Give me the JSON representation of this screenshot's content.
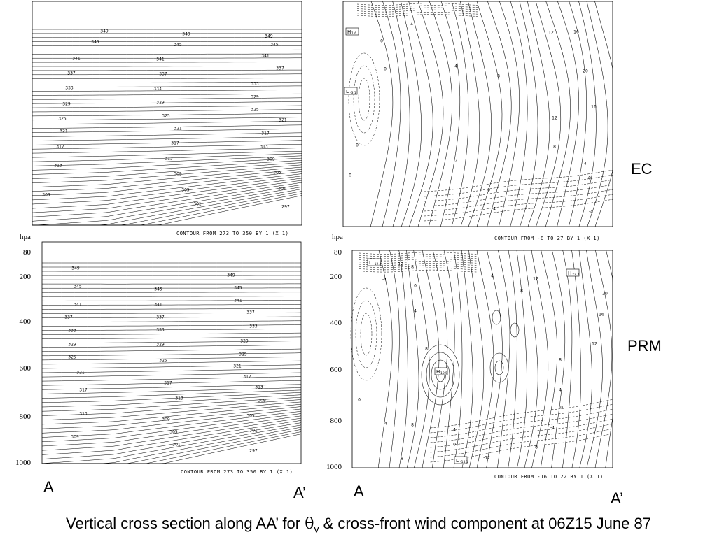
{
  "caption": {
    "prefix": "Vertical cross section along AA’ for ",
    "theta": "θ",
    "sub": "v",
    "suffix": " & cross-front wind component at 06Z15 June 87"
  },
  "rows": {
    "ec_label": "EC",
    "prm_label": "PRM"
  },
  "axis": {
    "unit": "hpa",
    "ticks": [
      "80",
      "200",
      "400",
      "600",
      "800",
      "1000"
    ]
  },
  "endpoints": {
    "a": "A",
    "a_prime": "A’"
  },
  "notes": {
    "ec_theta": "CONTOUR FROM 273 TO 350 BY 1 (X 1)",
    "ec_wind": "CONTOUR FROM -8 TO 27 BY 1 (X 1)",
    "prm_theta": "CONTOUR FROM 273 TO 350 BY 1 (X 1)",
    "prm_wind": "CONTOUR FROM -16 TO 22 BY 1 (X 1)"
  },
  "chart_data": [
    {
      "type": "contour",
      "panel": "EC theta_v",
      "contour_range": [
        273,
        350
      ],
      "interval": 1,
      "labeled_levels": [
        349,
        345,
        341,
        337,
        333,
        329,
        325,
        321,
        317,
        313,
        309,
        305,
        301,
        297
      ]
    },
    {
      "type": "contour",
      "panel": "EC wind",
      "contour_range": [
        -8,
        27
      ],
      "interval": 1,
      "labeled_levels": [
        -4,
        0,
        4,
        8,
        12,
        16,
        20
      ],
      "extrema": [
        {
          "label": "H",
          "value": "1.6"
        },
        {
          "label": "L",
          "value": "-3.1"
        }
      ]
    },
    {
      "type": "contour",
      "panel": "PRM theta_v",
      "contour_range": [
        273,
        350
      ],
      "interval": 1,
      "labeled_levels": [
        349,
        345,
        341,
        337,
        333,
        329,
        325,
        321,
        317,
        313,
        309,
        305,
        301,
        297
      ]
    },
    {
      "type": "contour",
      "panel": "PRM wind",
      "contour_range": [
        -16,
        22
      ],
      "interval": 1,
      "labeled_levels": [
        -12,
        -8,
        -4,
        0,
        4,
        8,
        12,
        16,
        20
      ],
      "extrema": [
        {
          "label": "L",
          "value": "-12.6"
        },
        {
          "label": "H",
          "value": "22.3"
        },
        {
          "label": "H",
          "value": "10.5"
        },
        {
          "label": "L",
          "value": "-15.1"
        }
      ]
    }
  ]
}
